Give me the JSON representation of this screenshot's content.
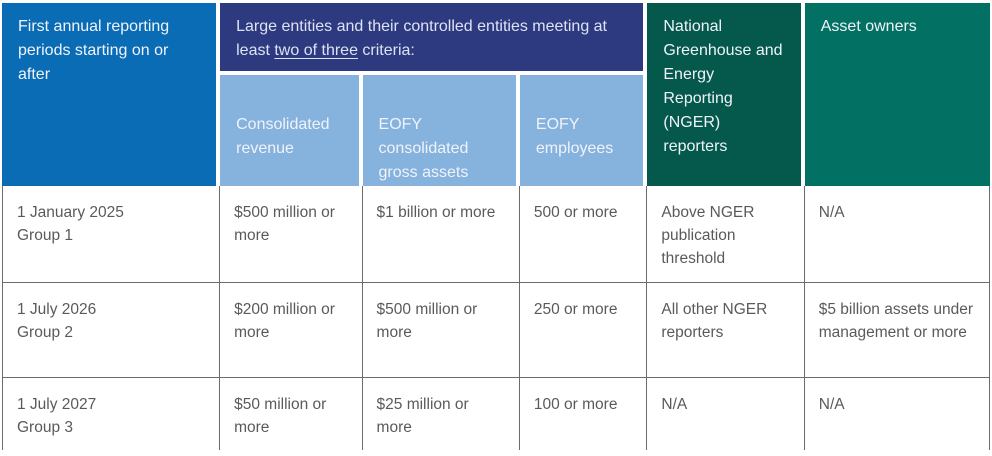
{
  "table": {
    "header": {
      "first_col": "First annual reporting periods starting on or after",
      "large_entities": {
        "prefix": "Large entities and their controlled entities meeting at least ",
        "underlined": "two of three",
        "suffix": " criteria:"
      },
      "criteria": [
        "Consolidated revenue",
        "EOFY consolidated gross assets",
        "EOFY employees"
      ],
      "nger": "National Greenhouse and Energy Reporting (NGER) reporters",
      "asset_owners": "Asset owners"
    },
    "rows": [
      {
        "period": "1 January 2025",
        "group": "Group 1",
        "consolidated_revenue": "$500 million or more",
        "gross_assets": "$1 billion or more",
        "employees": "500 or more",
        "nger": "Above NGER publication threshold",
        "asset_owners": "N/A"
      },
      {
        "period": "1 July 2026",
        "group": "Group 2",
        "consolidated_revenue": "$200 million or more",
        "gross_assets": "$500 million or more",
        "employees": "250 or more",
        "nger": "All other NGER reporters",
        "asset_owners": "$5 billion assets under management or more"
      },
      {
        "period": "1 July 2027",
        "group": "Group 3",
        "consolidated_revenue": "$50 million or more",
        "gross_assets": "$25 million or more",
        "employees": "100 or more",
        "nger": "N/A",
        "asset_owners": "N/A"
      }
    ],
    "colors": {
      "header_blue": "#0a6cb5",
      "header_navy": "#2e3a80",
      "header_light_blue": "#86b2de",
      "header_dark_green": "#04584c",
      "header_teal": "#027062",
      "body_text": "#595a5c",
      "border_gray": "#6a6b6e",
      "header_text": "#f0f3fa"
    }
  }
}
